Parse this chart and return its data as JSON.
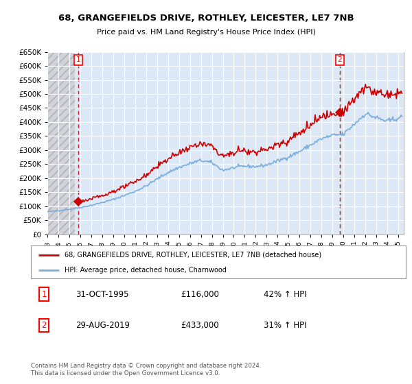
{
  "title": "68, GRANGEFIELDS DRIVE, ROTHLEY, LEICESTER, LE7 7NB",
  "subtitle": "Price paid vs. HM Land Registry's House Price Index (HPI)",
  "background_color": "#ffffff",
  "plot_bg_color": "#dce8f5",
  "grid_color": "#ffffff",
  "sale1": {
    "date_num": 1995.83,
    "price": 116000,
    "label": "1",
    "pct": "42% ↑ HPI",
    "date_str": "31-OCT-1995"
  },
  "sale2": {
    "date_num": 2019.66,
    "price": 433000,
    "label": "2",
    "pct": "31% ↑ HPI",
    "date_str": "29-AUG-2019"
  },
  "legend_label_red": "68, GRANGEFIELDS DRIVE, ROTHLEY, LEICESTER, LE7 7NB (detached house)",
  "legend_label_blue": "HPI: Average price, detached house, Charnwood",
  "footer": "Contains HM Land Registry data © Crown copyright and database right 2024.\nThis data is licensed under the Open Government Licence v3.0.",
  "hpi_color": "#7aaddd",
  "price_color": "#cc0000",
  "vline1_color": "#cc0000",
  "vline2_color": "#cc0000",
  "hatch_end_x": 1995.5,
  "xlim": [
    1993.0,
    2025.5
  ],
  "ylim": [
    0,
    650000
  ],
  "yticks": [
    0,
    50000,
    100000,
    150000,
    200000,
    250000,
    300000,
    350000,
    400000,
    450000,
    500000,
    550000,
    600000,
    650000
  ],
  "ytick_labels": [
    "£0",
    "£50K",
    "£100K",
    "£150K",
    "£200K",
    "£250K",
    "£300K",
    "£350K",
    "£400K",
    "£450K",
    "£500K",
    "£550K",
    "£600K",
    "£650K"
  ],
  "xticks": [
    1993,
    1994,
    1995,
    1996,
    1997,
    1998,
    1999,
    2000,
    2001,
    2002,
    2003,
    2004,
    2005,
    2006,
    2007,
    2008,
    2009,
    2010,
    2011,
    2012,
    2013,
    2014,
    2015,
    2016,
    2017,
    2018,
    2019,
    2020,
    2021,
    2022,
    2023,
    2024,
    2025
  ]
}
